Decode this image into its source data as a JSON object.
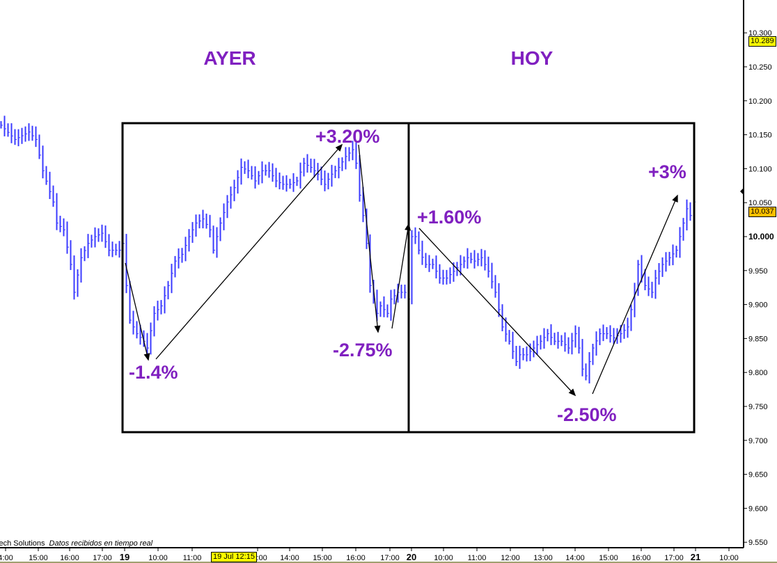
{
  "chart_data": {
    "type": "bar",
    "subtype": "high-low price bars",
    "bar_color": "#3b3bff",
    "annotation_color": "#8020c0",
    "y_axis": {
      "side": "right",
      "range": [
        9.55,
        10.33
      ],
      "ticks": [
        "10.300",
        "10.250",
        "10.200",
        "10.150",
        "10.100",
        "10.050",
        "10.000",
        "9.950",
        "9.900",
        "9.850",
        "9.800",
        "9.750",
        "9.700",
        "9.650",
        "9.600",
        "9.550"
      ],
      "bold_tick": "10.000"
    },
    "x_axis": {
      "ticks": [
        "4:00",
        "15:00",
        "16:00",
        "17:00",
        "19",
        "10:00",
        "11:00",
        "13:00",
        "14:00",
        "15:00",
        "16:00",
        "17:00",
        "20",
        "10:00",
        "11:00",
        "12:00",
        "13:00",
        "14:00",
        "15:00",
        "16:00",
        "17:00",
        "21",
        "10:00"
      ],
      "bold_ticks": [
        "19",
        "20",
        "21"
      ]
    },
    "price_path": [
      [
        0,
        10.164
      ],
      [
        4,
        10.143
      ],
      [
        8,
        10.154
      ],
      [
        10,
        10.143
      ],
      [
        12,
        10.097
      ],
      [
        15,
        10.051
      ],
      [
        16,
        10.02
      ],
      [
        18,
        10.01
      ],
      [
        20,
        9.959
      ],
      [
        21,
        9.918
      ],
      [
        23,
        9.969
      ],
      [
        25,
        9.99
      ],
      [
        27,
        10.0
      ],
      [
        29,
        10.005
      ],
      [
        31,
        9.98
      ],
      [
        34,
        9.98
      ],
      [
        35,
        9.99
      ],
      [
        36,
        9.928
      ],
      [
        37,
        9.877
      ],
      [
        39,
        9.857
      ],
      [
        41,
        9.846
      ],
      [
        42,
        9.836
      ],
      [
        44,
        9.887
      ],
      [
        46,
        9.898
      ],
      [
        48,
        9.928
      ],
      [
        50,
        9.964
      ],
      [
        52,
        9.974
      ],
      [
        54,
        10.0
      ],
      [
        56,
        10.02
      ],
      [
        58,
        10.026
      ],
      [
        60,
        10.01
      ],
      [
        61,
        9.98
      ],
      [
        63,
        10.02
      ],
      [
        65,
        10.051
      ],
      [
        67,
        10.072
      ],
      [
        69,
        10.102
      ],
      [
        71,
        10.097
      ],
      [
        73,
        10.082
      ],
      [
        75,
        10.097
      ],
      [
        77,
        10.097
      ],
      [
        79,
        10.082
      ],
      [
        81,
        10.077
      ],
      [
        83,
        10.077
      ],
      [
        85,
        10.082
      ],
      [
        87,
        10.108
      ],
      [
        89,
        10.102
      ],
      [
        91,
        10.092
      ],
      [
        93,
        10.077
      ],
      [
        95,
        10.092
      ],
      [
        97,
        10.102
      ],
      [
        99,
        10.118
      ],
      [
        101,
        10.128
      ],
      [
        102,
        10.108
      ],
      [
        103,
        10.061
      ],
      [
        104,
        10.031
      ],
      [
        105,
        9.99
      ],
      [
        106,
        9.928
      ],
      [
        107,
        9.908
      ],
      [
        108,
        9.887
      ],
      [
        109,
        9.898
      ],
      [
        111,
        9.887
      ],
      [
        112,
        9.908
      ],
      [
        114,
        9.918
      ],
      [
        116,
        9.918
      ],
      [
        117,
        9.908
      ],
      [
        118,
        10.0
      ],
      [
        119,
        10.0
      ],
      [
        120,
        9.98
      ],
      [
        122,
        9.959
      ],
      [
        124,
        9.959
      ],
      [
        126,
        9.939
      ],
      [
        128,
        9.939
      ],
      [
        130,
        9.949
      ],
      [
        132,
        9.959
      ],
      [
        134,
        9.969
      ],
      [
        136,
        9.964
      ],
      [
        138,
        9.969
      ],
      [
        140,
        9.949
      ],
      [
        142,
        9.918
      ],
      [
        144,
        9.867
      ],
      [
        146,
        9.846
      ],
      [
        148,
        9.816
      ],
      [
        149,
        9.826
      ],
      [
        151,
        9.826
      ],
      [
        153,
        9.836
      ],
      [
        155,
        9.846
      ],
      [
        157,
        9.857
      ],
      [
        159,
        9.846
      ],
      [
        161,
        9.846
      ],
      [
        163,
        9.836
      ],
      [
        165,
        9.857
      ],
      [
        166,
        9.836
      ],
      [
        167,
        9.805
      ],
      [
        168,
        9.795
      ],
      [
        169,
        9.816
      ],
      [
        170,
        9.836
      ],
      [
        172,
        9.857
      ],
      [
        174,
        9.857
      ],
      [
        176,
        9.851
      ],
      [
        178,
        9.857
      ],
      [
        180,
        9.867
      ],
      [
        182,
        9.918
      ],
      [
        183,
        9.959
      ],
      [
        185,
        9.928
      ],
      [
        187,
        9.918
      ],
      [
        188,
        9.939
      ],
      [
        190,
        9.959
      ],
      [
        192,
        9.969
      ],
      [
        194,
        9.98
      ],
      [
        196,
        10.02
      ],
      [
        197,
        10.041
      ],
      [
        198,
        10.031
      ],
      [
        199,
        10.051
      ]
    ]
  },
  "sections": {
    "ayer": "AYER",
    "hoy": "HOY"
  },
  "annotations": {
    "a1": "-1.4%",
    "a2": "+3.20%",
    "a3": "-2.75%",
    "a4": "+1.60%",
    "a5": "-2.50%",
    "a6": "+3%"
  },
  "badges": {
    "high": "10.289",
    "last": "10.037",
    "cursor_time": "19 Jul 12:15"
  },
  "footer": {
    "vendor": "Tech Solutions",
    "status": "Datos recibidos en tiempo real"
  }
}
